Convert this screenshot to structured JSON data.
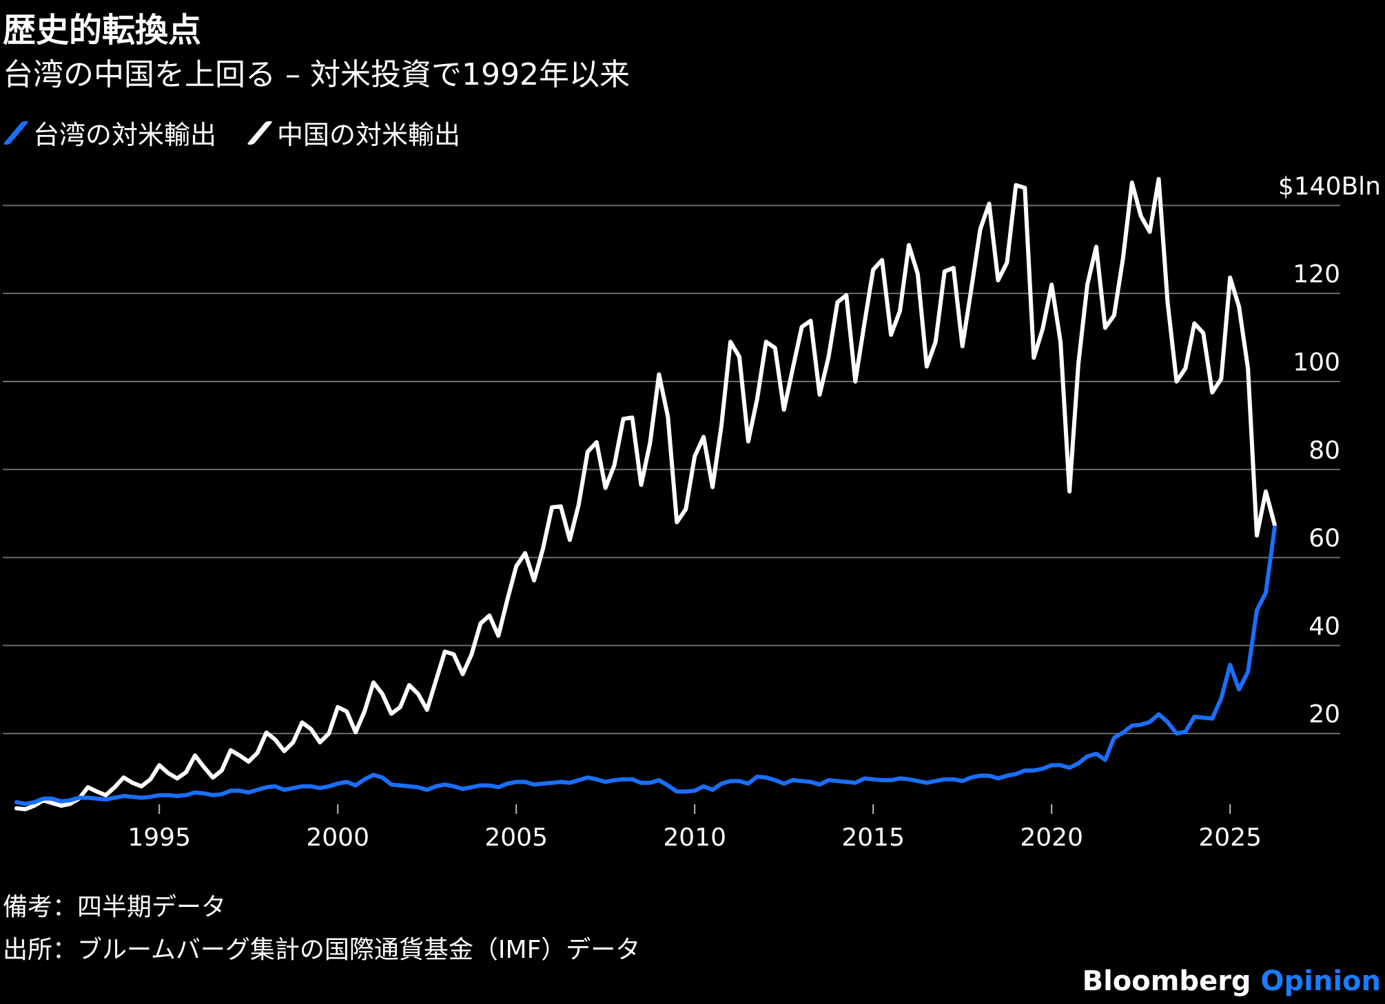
{
  "header": {
    "title": "歴史的転換点",
    "subtitle": "台湾の中国を上回る – 対米投資で1992年以来"
  },
  "legend": [
    {
      "label": "台湾の対米輸出",
      "color": "#1a6fff"
    },
    {
      "label": "中国の対米輸出",
      "color": "#ffffff"
    }
  ],
  "footer": {
    "note": "備考：四半期データ",
    "source": "出所：ブルームバーグ集計の国際通貨基金（IMF）データ",
    "brand_main": "Bloomberg",
    "brand_accent": "Opinion"
  },
  "chart_data": {
    "type": "line",
    "x_start": 1991.0,
    "x_step": 0.25,
    "xlim": [
      1991,
      2026
    ],
    "ylim": [
      0,
      140
    ],
    "y_ticks": [
      20,
      40,
      60,
      80,
      100,
      120,
      140
    ],
    "y_tick_labels": [
      "20",
      "40",
      "60",
      "80",
      "100",
      "120",
      "$140Bln"
    ],
    "x_ticks": [
      1995,
      2000,
      2005,
      2010,
      2015,
      2020,
      2025
    ],
    "x_tick_labels": [
      "1995",
      "2000",
      "2005",
      "2010",
      "2015",
      "2020",
      "2025"
    ],
    "grid": true,
    "series": [
      {
        "name": "中国の対米輸出",
        "color": "#ffffff",
        "values": [
          3.0,
          2.8,
          3.6,
          4.8,
          4.2,
          3.6,
          4.0,
          5.2,
          7.8,
          6.8,
          6.0,
          7.8,
          10.0,
          8.8,
          8.0,
          9.6,
          12.8,
          11.0,
          9.8,
          11.2,
          15.0,
          12.4,
          10.0,
          11.6,
          16.2,
          15.0,
          13.6,
          15.6,
          20.2,
          18.6,
          16.0,
          18.0,
          22.5,
          21.0,
          18.0,
          20.0,
          26.0,
          25.0,
          20.3,
          25.0,
          31.6,
          29.0,
          24.5,
          26.0,
          31.0,
          29.0,
          25.4,
          32.0,
          38.6,
          38.0,
          33.5,
          38.0,
          45.0,
          46.8,
          42.2,
          50.4,
          58.0,
          61.0,
          54.8,
          62.0,
          71.4,
          71.6,
          64.0,
          72.0,
          84.0,
          86.2,
          75.8,
          81.0,
          91.5,
          91.8,
          76.5,
          86.0,
          101.6,
          92.0,
          68.0,
          71.0,
          83.0,
          87.4,
          76.0,
          90.0,
          109.0,
          105.6,
          86.4,
          96.0,
          109.0,
          107.6,
          93.6,
          103.0,
          112.4,
          113.8,
          97.0,
          105.6,
          118.0,
          119.6,
          100.0,
          113.0,
          125.4,
          127.6,
          110.6,
          116.0,
          131.0,
          124.4,
          103.4,
          109.0,
          125.0,
          125.8,
          108.0,
          121.0,
          134.6,
          140.4,
          123.0,
          127.0,
          144.6,
          144.0,
          105.4,
          112.0,
          122.0,
          109.0,
          75.0,
          104.0,
          122.0,
          130.6,
          112.2,
          115.0,
          128.0,
          145.2,
          137.6,
          134.0,
          146.0,
          118.0,
          100.0,
          103.0,
          113.2,
          111.0,
          97.5,
          100.6,
          123.6,
          117.0,
          103.0,
          65.0,
          75.0,
          67.4
        ]
      },
      {
        "name": "台湾の対米輸出",
        "color": "#1a6fff",
        "values": [
          4.4,
          4.0,
          4.4,
          5.2,
          5.2,
          4.6,
          4.8,
          5.4,
          5.4,
          5.2,
          5.0,
          5.4,
          5.8,
          5.6,
          5.4,
          5.6,
          6.0,
          6.0,
          5.8,
          6.0,
          6.6,
          6.4,
          6.0,
          6.2,
          7.0,
          7.0,
          6.6,
          7.2,
          7.8,
          8.0,
          7.2,
          7.6,
          8.0,
          8.0,
          7.6,
          8.0,
          8.6,
          9.0,
          8.2,
          9.6,
          10.6,
          10.0,
          8.4,
          8.2,
          8.0,
          7.8,
          7.2,
          8.0,
          8.4,
          8.0,
          7.4,
          7.8,
          8.2,
          8.2,
          7.8,
          8.6,
          9.0,
          9.0,
          8.4,
          8.6,
          8.8,
          9.0,
          8.8,
          9.4,
          10.0,
          9.6,
          9.0,
          9.4,
          9.6,
          9.6,
          8.8,
          8.8,
          9.4,
          8.2,
          6.8,
          6.8,
          7.0,
          8.0,
          7.2,
          8.6,
          9.2,
          9.2,
          8.6,
          10.2,
          10.0,
          9.4,
          8.6,
          9.4,
          9.2,
          9.0,
          8.4,
          9.4,
          9.2,
          9.0,
          8.8,
          9.8,
          9.6,
          9.4,
          9.4,
          9.8,
          9.6,
          9.2,
          8.8,
          9.2,
          9.6,
          9.6,
          9.2,
          10.0,
          10.4,
          10.4,
          9.8,
          10.4,
          10.8,
          11.6,
          11.6,
          12.0,
          12.8,
          12.8,
          12.2,
          13.2,
          14.8,
          15.4,
          14.0,
          19.0,
          20.2,
          21.8,
          22.0,
          22.6,
          24.4,
          22.6,
          20.0,
          20.4,
          23.8,
          23.6,
          23.4,
          28.0,
          35.6,
          30.0,
          34.0,
          48.0,
          52.0,
          66.8
        ]
      }
    ]
  }
}
